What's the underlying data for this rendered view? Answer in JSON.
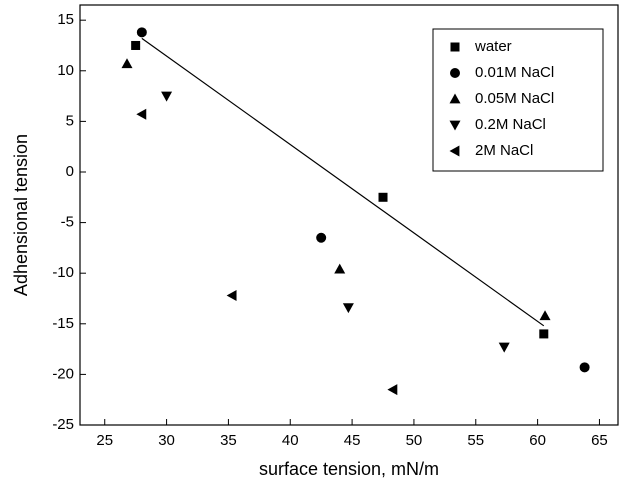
{
  "chart_data": {
    "type": "scatter",
    "x_label": "surface tension, mN/m",
    "y_label": "Adhensional tension",
    "xlim": [
      23,
      66.5
    ],
    "ylim": [
      -25,
      16.5
    ],
    "xticks": [
      25,
      30,
      35,
      40,
      45,
      50,
      55,
      60,
      65
    ],
    "yticks": [
      -25,
      -20,
      -15,
      -10,
      -5,
      0,
      5,
      10,
      15
    ],
    "legend": "upper-right",
    "series": [
      {
        "name": "water",
        "color": "#000000",
        "marker": "square",
        "x": [
          27.5,
          47.5,
          60.5
        ],
        "values": [
          12.5,
          -2.5,
          -16
        ]
      },
      {
        "name": "0.01M NaCl",
        "color": "#000000",
        "marker": "circle",
        "x": [
          28,
          42.5,
          63.8
        ],
        "values": [
          13.8,
          -6.5,
          -19.3
        ]
      },
      {
        "name": "0.05M NaCl",
        "color": "#000000",
        "marker": "triangle-up",
        "x": [
          26.8,
          44,
          60.6
        ],
        "values": [
          10.7,
          -9.6,
          -14.2
        ]
      },
      {
        "name": "0.2M NaCl",
        "color": "#000000",
        "marker": "triangle-down",
        "x": [
          30,
          44.7,
          57.3
        ],
        "values": [
          7.5,
          -13.4,
          -17.3
        ]
      },
      {
        "name": "2M NaCl",
        "color": "#000000",
        "marker": "triangle-left",
        "x": [
          28,
          35.3,
          48.3
        ],
        "values": [
          5.7,
          -12.2,
          -21.5
        ]
      }
    ],
    "fit_line": {
      "color": "#000000",
      "x": [
        28,
        60.5
      ],
      "values": [
        13.2,
        -15.2
      ]
    }
  }
}
